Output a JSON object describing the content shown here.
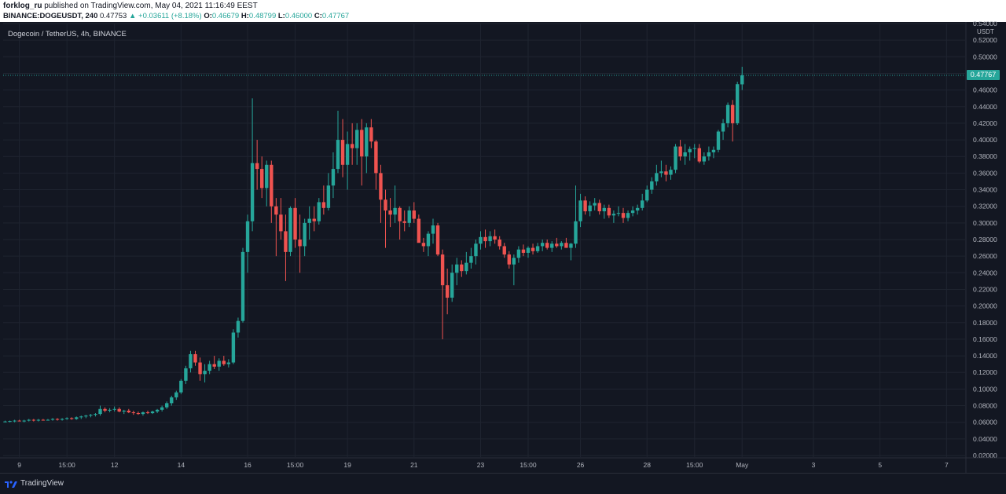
{
  "header": {
    "publisher": "forklog_ru",
    "published_text": "published on TradingView.com, May 04, 2021 11:16:49 EEST",
    "symbol_line": {
      "symbol": "BINANCE:DOGEUSDT, 240",
      "last": "0.47753",
      "change": "▲ +0.03611 (+8.18%)",
      "o_label": "O:",
      "o": "0.46679",
      "h_label": "H:",
      "h": "0.48799",
      "l_label": "L:",
      "l": "0.46000",
      "c_label": "C:",
      "c": "0.47767"
    }
  },
  "legend": "Dogecoin / TetherUS, 4h, BINANCE",
  "price_axis_unit": "USDT",
  "last_price_tag": "0.47767",
  "footer": {
    "brand": "TradingView"
  },
  "colors": {
    "up": "#26a69a",
    "down": "#ef5350",
    "background": "#131722",
    "grid": "#1f2430",
    "axis_text": "#b2b5be"
  },
  "chart_data": {
    "type": "candlestick",
    "title": "Dogecoin / TetherUS, 4h, BINANCE",
    "ylim": [
      0.02,
      0.54
    ],
    "y_ticks": [
      "0.54000",
      "0.52000",
      "0.50000",
      "0.48000",
      "0.46000",
      "0.44000",
      "0.42000",
      "0.40000",
      "0.38000",
      "0.36000",
      "0.34000",
      "0.32000",
      "0.30000",
      "0.28000",
      "0.26000",
      "0.24000",
      "0.22000",
      "0.20000",
      "0.18000",
      "0.16000",
      "0.14000",
      "0.12000",
      "0.10000",
      "0.08000",
      "0.06000",
      "0.04000",
      "0.02000"
    ],
    "x_ticks": [
      {
        "label": "9",
        "bar": 3
      },
      {
        "label": "15:00",
        "bar": 13
      },
      {
        "label": "12",
        "bar": 23
      },
      {
        "label": "14",
        "bar": 37
      },
      {
        "label": "16",
        "bar": 51
      },
      {
        "label": "15:00",
        "bar": 61
      },
      {
        "label": "19",
        "bar": 72
      },
      {
        "label": "21",
        "bar": 86
      },
      {
        "label": "23",
        "bar": 100
      },
      {
        "label": "15:00",
        "bar": 110
      },
      {
        "label": "26",
        "bar": 121
      },
      {
        "label": "28",
        "bar": 135
      },
      {
        "label": "15:00",
        "bar": 145
      },
      {
        "label": "May",
        "bar": 155
      },
      {
        "label": "3",
        "bar": 170
      },
      {
        "label": "5",
        "bar": 184
      },
      {
        "label": "7",
        "bar": 198
      }
    ],
    "last_price": 0.47767,
    "candles": [
      [
        0.061,
        0.062,
        0.06,
        0.061
      ],
      [
        0.061,
        0.062,
        0.06,
        0.0615
      ],
      [
        0.0615,
        0.063,
        0.06,
        0.062
      ],
      [
        0.062,
        0.063,
        0.061,
        0.0615
      ],
      [
        0.0615,
        0.063,
        0.06,
        0.062
      ],
      [
        0.062,
        0.064,
        0.061,
        0.063
      ],
      [
        0.063,
        0.064,
        0.061,
        0.0625
      ],
      [
        0.0625,
        0.064,
        0.061,
        0.063
      ],
      [
        0.063,
        0.064,
        0.062,
        0.0625
      ],
      [
        0.0625,
        0.064,
        0.062,
        0.063
      ],
      [
        0.063,
        0.065,
        0.062,
        0.064
      ],
      [
        0.064,
        0.065,
        0.062,
        0.063
      ],
      [
        0.063,
        0.065,
        0.062,
        0.064
      ],
      [
        0.064,
        0.066,
        0.063,
        0.065
      ],
      [
        0.065,
        0.066,
        0.063,
        0.064
      ],
      [
        0.064,
        0.067,
        0.063,
        0.066
      ],
      [
        0.066,
        0.068,
        0.064,
        0.067
      ],
      [
        0.067,
        0.069,
        0.065,
        0.068
      ],
      [
        0.068,
        0.07,
        0.066,
        0.069
      ],
      [
        0.069,
        0.071,
        0.067,
        0.07
      ],
      [
        0.07,
        0.08,
        0.068,
        0.076
      ],
      [
        0.076,
        0.078,
        0.072,
        0.074
      ],
      [
        0.074,
        0.077,
        0.072,
        0.075
      ],
      [
        0.075,
        0.079,
        0.073,
        0.076
      ],
      [
        0.076,
        0.078,
        0.072,
        0.073
      ],
      [
        0.073,
        0.075,
        0.07,
        0.074
      ],
      [
        0.074,
        0.076,
        0.071,
        0.072
      ],
      [
        0.072,
        0.074,
        0.069,
        0.071
      ],
      [
        0.071,
        0.073,
        0.069,
        0.07
      ],
      [
        0.07,
        0.073,
        0.068,
        0.072
      ],
      [
        0.072,
        0.074,
        0.07,
        0.071
      ],
      [
        0.071,
        0.074,
        0.07,
        0.073
      ],
      [
        0.073,
        0.076,
        0.071,
        0.075
      ],
      [
        0.075,
        0.08,
        0.073,
        0.078
      ],
      [
        0.078,
        0.085,
        0.076,
        0.083
      ],
      [
        0.083,
        0.092,
        0.08,
        0.09
      ],
      [
        0.09,
        0.098,
        0.087,
        0.096
      ],
      [
        0.096,
        0.112,
        0.094,
        0.11
      ],
      [
        0.11,
        0.128,
        0.106,
        0.125
      ],
      [
        0.125,
        0.146,
        0.12,
        0.142
      ],
      [
        0.142,
        0.146,
        0.128,
        0.132
      ],
      [
        0.132,
        0.138,
        0.11,
        0.118
      ],
      [
        0.118,
        0.13,
        0.108,
        0.122
      ],
      [
        0.122,
        0.134,
        0.118,
        0.13
      ],
      [
        0.13,
        0.14,
        0.124,
        0.127
      ],
      [
        0.127,
        0.137,
        0.122,
        0.134
      ],
      [
        0.134,
        0.14,
        0.128,
        0.13
      ],
      [
        0.13,
        0.136,
        0.126,
        0.132
      ],
      [
        0.132,
        0.172,
        0.13,
        0.168
      ],
      [
        0.168,
        0.186,
        0.162,
        0.182
      ],
      [
        0.182,
        0.27,
        0.18,
        0.265
      ],
      [
        0.265,
        0.31,
        0.24,
        0.302
      ],
      [
        0.302,
        0.45,
        0.29,
        0.372
      ],
      [
        0.372,
        0.4,
        0.34,
        0.365
      ],
      [
        0.365,
        0.38,
        0.33,
        0.342
      ],
      [
        0.342,
        0.375,
        0.32,
        0.37
      ],
      [
        0.37,
        0.375,
        0.3,
        0.32
      ],
      [
        0.32,
        0.33,
        0.26,
        0.31
      ],
      [
        0.31,
        0.33,
        0.28,
        0.29
      ],
      [
        0.29,
        0.31,
        0.23,
        0.265
      ],
      [
        0.265,
        0.32,
        0.26,
        0.318
      ],
      [
        0.318,
        0.33,
        0.27,
        0.28
      ],
      [
        0.28,
        0.31,
        0.24,
        0.272
      ],
      [
        0.272,
        0.305,
        0.26,
        0.3
      ],
      [
        0.3,
        0.32,
        0.28,
        0.305
      ],
      [
        0.305,
        0.32,
        0.29,
        0.302
      ],
      [
        0.302,
        0.33,
        0.298,
        0.325
      ],
      [
        0.325,
        0.345,
        0.31,
        0.318
      ],
      [
        0.318,
        0.36,
        0.315,
        0.345
      ],
      [
        0.345,
        0.385,
        0.33,
        0.365
      ],
      [
        0.365,
        0.435,
        0.36,
        0.4
      ],
      [
        0.4,
        0.425,
        0.355,
        0.37
      ],
      [
        0.37,
        0.41,
        0.34,
        0.395
      ],
      [
        0.395,
        0.42,
        0.37,
        0.39
      ],
      [
        0.39,
        0.42,
        0.37,
        0.412
      ],
      [
        0.412,
        0.425,
        0.345,
        0.38
      ],
      [
        0.38,
        0.42,
        0.36,
        0.415
      ],
      [
        0.415,
        0.425,
        0.39,
        0.398
      ],
      [
        0.398,
        0.4,
        0.34,
        0.36
      ],
      [
        0.36,
        0.37,
        0.3,
        0.328
      ],
      [
        0.328,
        0.34,
        0.27,
        0.315
      ],
      [
        0.315,
        0.33,
        0.295,
        0.31
      ],
      [
        0.31,
        0.345,
        0.3,
        0.318
      ],
      [
        0.318,
        0.32,
        0.28,
        0.302
      ],
      [
        0.302,
        0.315,
        0.29,
        0.3
      ],
      [
        0.3,
        0.32,
        0.295,
        0.315
      ],
      [
        0.315,
        0.325,
        0.3,
        0.305
      ],
      [
        0.305,
        0.31,
        0.28,
        0.276
      ],
      [
        0.276,
        0.282,
        0.265,
        0.272
      ],
      [
        0.272,
        0.29,
        0.26,
        0.287
      ],
      [
        0.287,
        0.305,
        0.275,
        0.297
      ],
      [
        0.297,
        0.3,
        0.26,
        0.262
      ],
      [
        0.262,
        0.268,
        0.16,
        0.225
      ],
      [
        0.225,
        0.245,
        0.19,
        0.21
      ],
      [
        0.21,
        0.25,
        0.205,
        0.24
      ],
      [
        0.24,
        0.258,
        0.225,
        0.25
      ],
      [
        0.25,
        0.255,
        0.235,
        0.242
      ],
      [
        0.242,
        0.265,
        0.238,
        0.252
      ],
      [
        0.252,
        0.27,
        0.245,
        0.26
      ],
      [
        0.26,
        0.28,
        0.25,
        0.275
      ],
      [
        0.275,
        0.29,
        0.268,
        0.283
      ],
      [
        0.283,
        0.292,
        0.27,
        0.278
      ],
      [
        0.278,
        0.29,
        0.272,
        0.284
      ],
      [
        0.284,
        0.292,
        0.275,
        0.28
      ],
      [
        0.28,
        0.284,
        0.268,
        0.272
      ],
      [
        0.272,
        0.276,
        0.258,
        0.262
      ],
      [
        0.262,
        0.266,
        0.245,
        0.25
      ],
      [
        0.25,
        0.262,
        0.225,
        0.258
      ],
      [
        0.258,
        0.272,
        0.252,
        0.268
      ],
      [
        0.268,
        0.274,
        0.26,
        0.264
      ],
      [
        0.264,
        0.272,
        0.258,
        0.27
      ],
      [
        0.27,
        0.275,
        0.262,
        0.266
      ],
      [
        0.266,
        0.276,
        0.264,
        0.272
      ],
      [
        0.272,
        0.28,
        0.266,
        0.276
      ],
      [
        0.276,
        0.28,
        0.268,
        0.27
      ],
      [
        0.27,
        0.278,
        0.265,
        0.275
      ],
      [
        0.275,
        0.282,
        0.27,
        0.272
      ],
      [
        0.272,
        0.278,
        0.268,
        0.276
      ],
      [
        0.276,
        0.282,
        0.27,
        0.27
      ],
      [
        0.27,
        0.276,
        0.255,
        0.275
      ],
      [
        0.275,
        0.345,
        0.27,
        0.302
      ],
      [
        0.302,
        0.335,
        0.295,
        0.327
      ],
      [
        0.327,
        0.332,
        0.31,
        0.314
      ],
      [
        0.314,
        0.326,
        0.308,
        0.321
      ],
      [
        0.321,
        0.33,
        0.315,
        0.324
      ],
      [
        0.324,
        0.328,
        0.31,
        0.314
      ],
      [
        0.314,
        0.322,
        0.305,
        0.318
      ],
      [
        0.318,
        0.322,
        0.306,
        0.309
      ],
      [
        0.309,
        0.315,
        0.3,
        0.311
      ],
      [
        0.311,
        0.32,
        0.308,
        0.312
      ],
      [
        0.312,
        0.318,
        0.3,
        0.306
      ],
      [
        0.306,
        0.315,
        0.302,
        0.312
      ],
      [
        0.312,
        0.32,
        0.308,
        0.315
      ],
      [
        0.315,
        0.322,
        0.31,
        0.318
      ],
      [
        0.318,
        0.335,
        0.315,
        0.327
      ],
      [
        0.327,
        0.345,
        0.325,
        0.34
      ],
      [
        0.34,
        0.355,
        0.335,
        0.35
      ],
      [
        0.35,
        0.37,
        0.345,
        0.36
      ],
      [
        0.36,
        0.375,
        0.355,
        0.362
      ],
      [
        0.362,
        0.37,
        0.35,
        0.358
      ],
      [
        0.358,
        0.368,
        0.352,
        0.364
      ],
      [
        0.364,
        0.395,
        0.36,
        0.392
      ],
      [
        0.392,
        0.4,
        0.375,
        0.38
      ],
      [
        0.38,
        0.395,
        0.37,
        0.385
      ],
      [
        0.385,
        0.392,
        0.375,
        0.389
      ],
      [
        0.389,
        0.395,
        0.378,
        0.39
      ],
      [
        0.39,
        0.395,
        0.372,
        0.374
      ],
      [
        0.374,
        0.385,
        0.37,
        0.38
      ],
      [
        0.38,
        0.392,
        0.375,
        0.385
      ],
      [
        0.385,
        0.392,
        0.378,
        0.388
      ],
      [
        0.388,
        0.412,
        0.385,
        0.41
      ],
      [
        0.41,
        0.425,
        0.4,
        0.42
      ],
      [
        0.42,
        0.445,
        0.415,
        0.442
      ],
      [
        0.442,
        0.448,
        0.398,
        0.42
      ],
      [
        0.42,
        0.47,
        0.418,
        0.467
      ],
      [
        0.46679,
        0.48799,
        0.46,
        0.47767
      ]
    ]
  }
}
